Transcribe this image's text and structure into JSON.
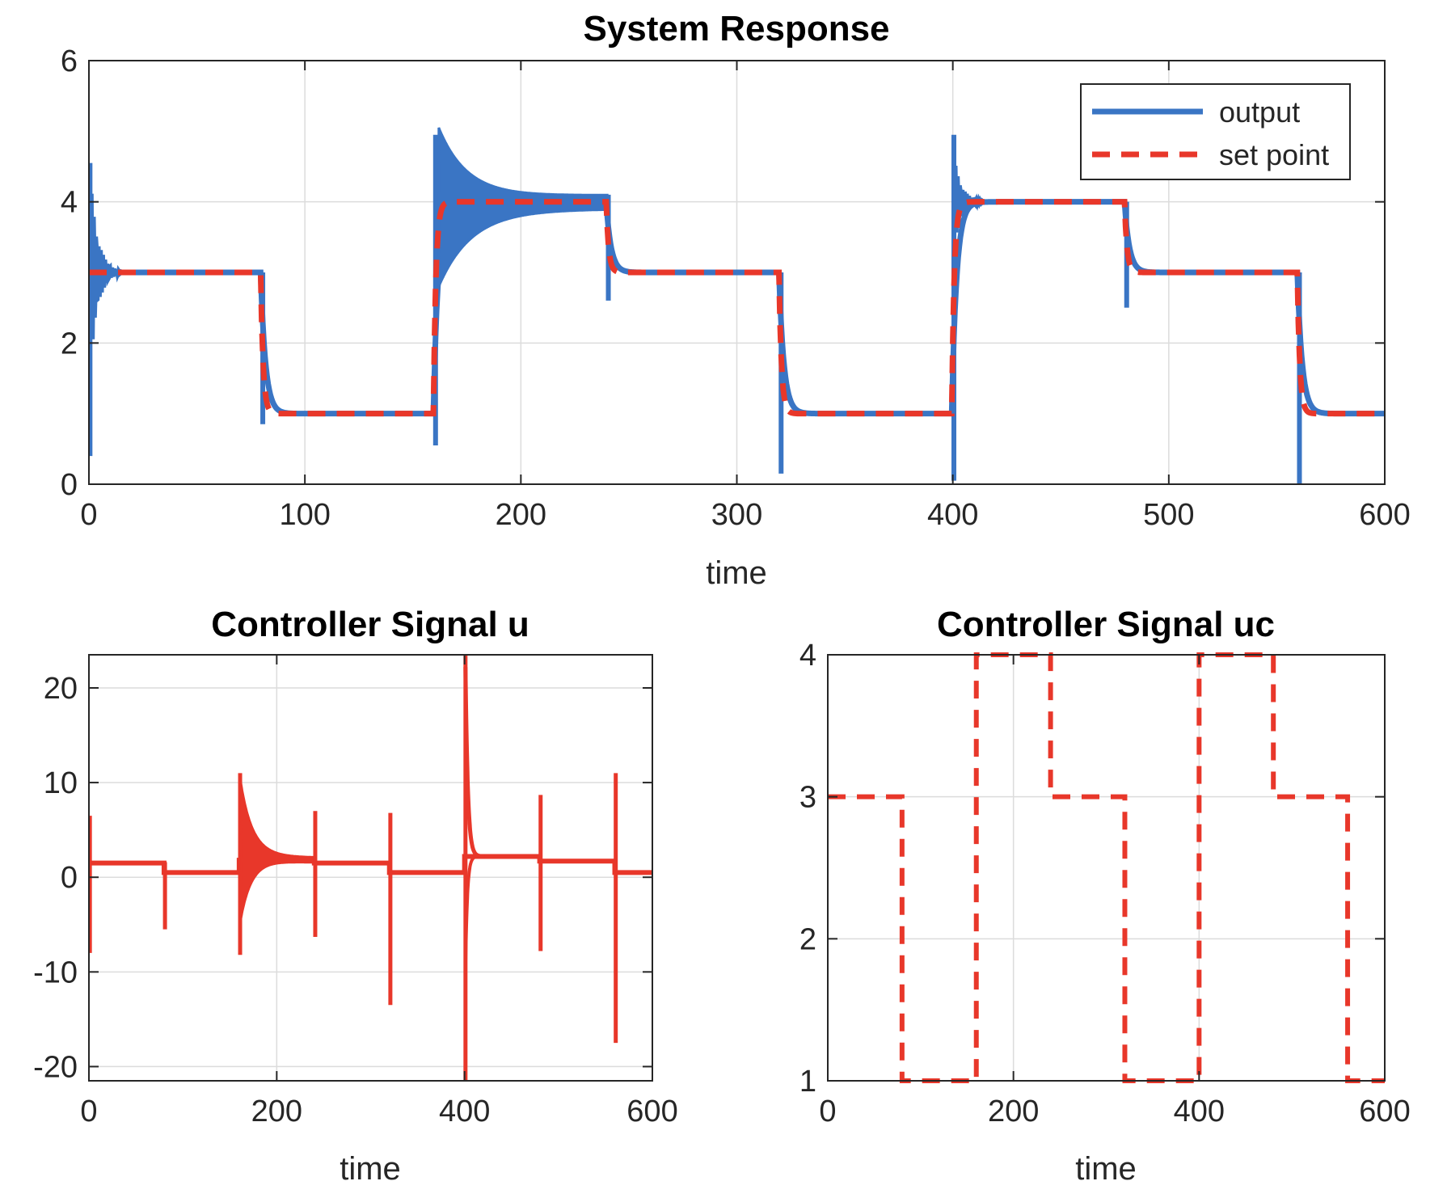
{
  "colors": {
    "output": "#3A75C4",
    "setpoint": "#E8372A",
    "axis": "#262626",
    "grid": "#DCDCDC"
  },
  "chart_data": [
    {
      "id": "system-response",
      "type": "line",
      "title": "System Response",
      "xlabel": "time",
      "ylabel": "",
      "xlim": [
        0,
        600
      ],
      "ylim": [
        0,
        6
      ],
      "xticks": [
        0,
        100,
        200,
        300,
        400,
        500,
        600
      ],
      "yticks": [
        0,
        2,
        4,
        6
      ],
      "grid": true,
      "legend": "top-right",
      "series": [
        {
          "name": "output",
          "style": "solid",
          "setpoint_steps": [
            [
              0,
              3
            ],
            [
              80,
              1
            ],
            [
              160,
              4
            ],
            [
              240,
              3
            ],
            [
              320,
              1
            ],
            [
              400,
              4
            ],
            [
              480,
              3
            ],
            [
              560,
              1
            ],
            [
              600,
              1
            ]
          ],
          "transients": [
            {
              "t": 0,
              "peak_high": 4.55,
              "peak_low": 0.4
            },
            {
              "t": 80,
              "peak_high": 3.0,
              "peak_low": 0.85
            },
            {
              "t": 160,
              "peak_high": 4.95,
              "peak_low": 0.55,
              "oscillation_band": [
                2.9,
                4.95
              ]
            },
            {
              "t": 240,
              "peak_high": 4.1,
              "peak_low": 2.6
            },
            {
              "t": 320,
              "peak_high": 3.0,
              "peak_low": 0.15
            },
            {
              "t": 400,
              "peak_high": 4.95,
              "peak_low": 0.05
            },
            {
              "t": 480,
              "peak_high": 4.0,
              "peak_low": 2.5
            },
            {
              "t": 560,
              "peak_high": 3.0,
              "peak_low": -0.1
            }
          ]
        },
        {
          "name": "set point",
          "style": "dashed",
          "steps": [
            [
              0,
              3
            ],
            [
              80,
              1
            ],
            [
              160,
              4
            ],
            [
              240,
              3
            ],
            [
              320,
              1
            ],
            [
              400,
              4
            ],
            [
              480,
              3
            ],
            [
              560,
              1
            ],
            [
              600,
              1
            ]
          ]
        }
      ]
    },
    {
      "id": "controller-u",
      "type": "line",
      "title": "Controller Signal  u",
      "xlabel": "time",
      "ylabel": "",
      "xlim": [
        0,
        600
      ],
      "ylim": [
        -21.5,
        23.5
      ],
      "xticks": [
        0,
        200,
        400,
        600
      ],
      "yticks": [
        -20,
        -10,
        0,
        10,
        20
      ],
      "grid": true,
      "series": [
        {
          "name": "",
          "levels": [
            [
              0,
              1.5
            ],
            [
              80,
              0.5
            ],
            [
              160,
              1.8
            ],
            [
              240,
              1.5
            ],
            [
              320,
              0.5
            ],
            [
              400,
              2.2
            ],
            [
              480,
              1.7
            ],
            [
              560,
              0.5
            ],
            [
              600,
              0.5
            ]
          ],
          "spikes": [
            {
              "t": 0,
              "high": 6.5,
              "low": -8
            },
            {
              "t": 80,
              "high": 1.6,
              "low": -5.5
            },
            {
              "t": 160,
              "high": 11,
              "low": -8.2
            },
            {
              "t": 240,
              "high": 7,
              "low": -6.3
            },
            {
              "t": 320,
              "high": 6.8,
              "low": -13.5
            },
            {
              "t": 400,
              "high": 23.5,
              "low": -21.5
            },
            {
              "t": 480,
              "high": 8.7,
              "low": -7.8
            },
            {
              "t": 560,
              "high": 11,
              "low": -17.5
            }
          ]
        }
      ]
    },
    {
      "id": "controller-uc",
      "type": "line",
      "title": "Controller Signal  uc",
      "xlabel": "time",
      "ylabel": "",
      "xlim": [
        0,
        600
      ],
      "ylim": [
        1,
        4
      ],
      "xticks": [
        0,
        200,
        400,
        600
      ],
      "yticks": [
        1,
        2,
        3,
        4
      ],
      "grid": true,
      "series": [
        {
          "name": "",
          "style": "dashed",
          "steps": [
            [
              0,
              3
            ],
            [
              80,
              1
            ],
            [
              160,
              4
            ],
            [
              240,
              3
            ],
            [
              320,
              1
            ],
            [
              400,
              4
            ],
            [
              480,
              3
            ],
            [
              560,
              1
            ],
            [
              600,
              1
            ]
          ]
        }
      ]
    }
  ],
  "legend": {
    "output_label": "output",
    "setpoint_label": "set point"
  },
  "titles": {
    "top": "System Response",
    "bottom_left": "Controller Signal  u",
    "bottom_right": "Controller Signal  uc"
  },
  "axis_labels": {
    "top_x": "time",
    "bl_x": "time",
    "br_x": "time"
  }
}
